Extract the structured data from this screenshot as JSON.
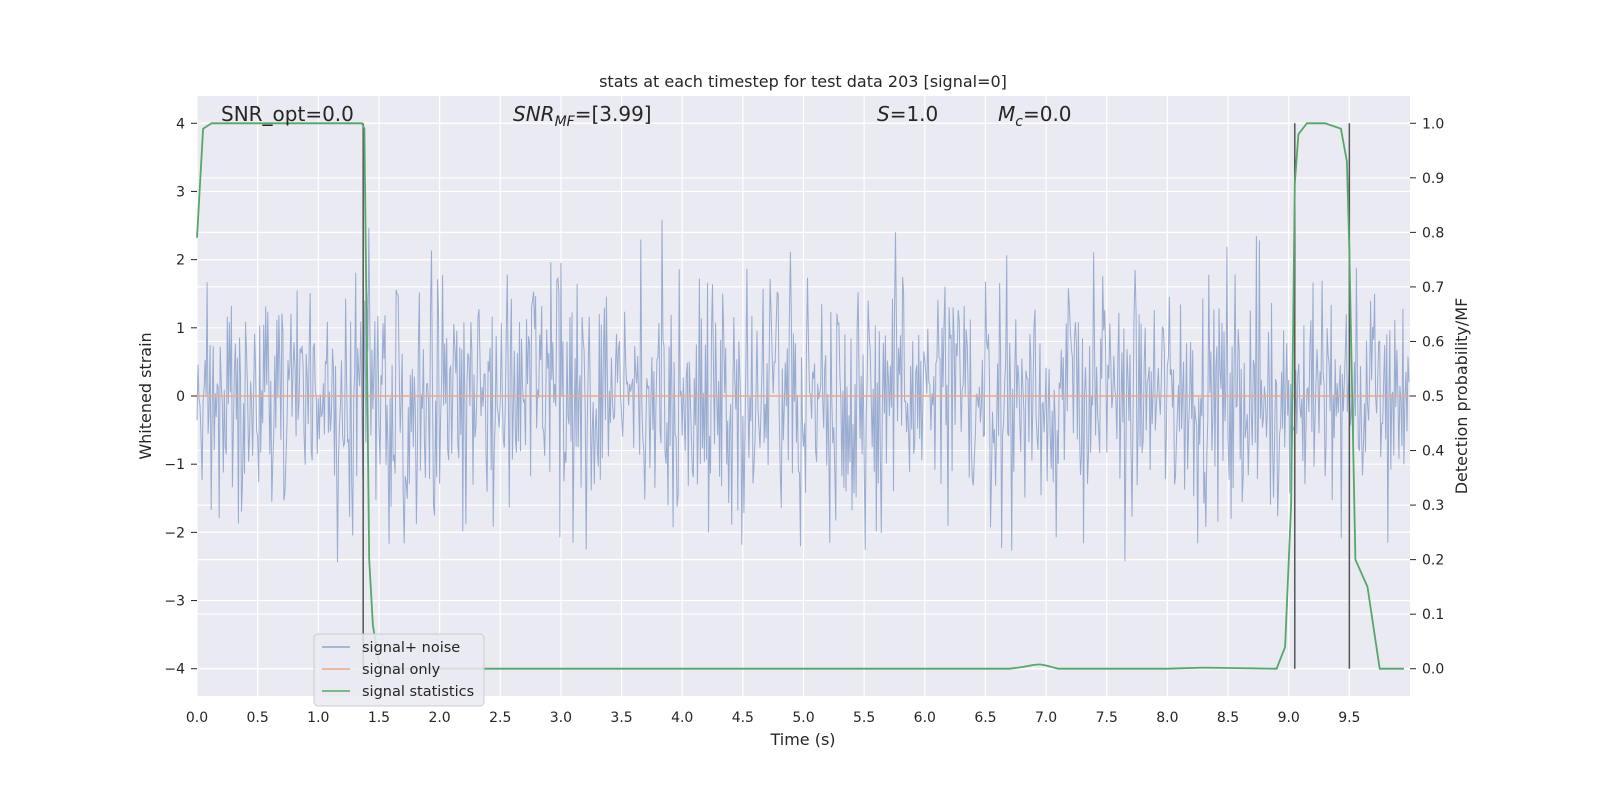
{
  "chart_data": {
    "type": "line",
    "title": "stats at each timestep for test data 203 [signal=0]",
    "xlabel": "Time (s)",
    "ylabel_left": "Whitened strain",
    "ylabel_right": "Detection probability/MF",
    "xlim": [
      0.0,
      10.0
    ],
    "ylim_left": [
      -4.4,
      4.4
    ],
    "ylim_right": [
      -0.05,
      1.05
    ],
    "x_ticks": [
      "0.0",
      "0.5",
      "1.0",
      "1.5",
      "2.0",
      "2.5",
      "3.0",
      "3.5",
      "4.0",
      "4.5",
      "5.0",
      "5.5",
      "6.0",
      "6.5",
      "7.0",
      "7.5",
      "8.0",
      "8.5",
      "9.0",
      "9.5"
    ],
    "y_ticks_left": [
      "−4",
      "−3",
      "−2",
      "−1",
      "0",
      "1",
      "2",
      "3",
      "4"
    ],
    "y_ticks_right": [
      "0.0",
      "0.1",
      "0.2",
      "0.3",
      "0.4",
      "0.5",
      "0.6",
      "0.7",
      "0.8",
      "0.9",
      "1.0"
    ],
    "grid": true,
    "legend_position": "lower-left",
    "annotations": {
      "snr_opt": "SNR_opt=0.0",
      "snr_mf_main": "SNR",
      "snr_mf_sub": "MF",
      "snr_mf_value": "=[3.99]",
      "s_main": "S",
      "s_value": "=1.0",
      "mc_main": "M",
      "mc_sub": "c",
      "mc_value": "=0.0"
    },
    "vertical_lines_x": [
      1.37,
      9.05,
      9.5
    ],
    "series": [
      {
        "name": "signal+ noise",
        "axis": "left",
        "color": "#8fa4cc",
        "description_values": "white-noise strain, approximately zero mean, peaks near ±4"
      },
      {
        "name": "signal only",
        "axis": "left",
        "color": "#e8a88c",
        "x": [
          0.0,
          10.0
        ],
        "y": [
          0.0,
          0.0
        ]
      },
      {
        "name": "signal statistics",
        "axis": "right",
        "color": "#55a868",
        "x": [
          0.0,
          0.05,
          0.12,
          0.3,
          1.3,
          1.36,
          1.38,
          1.42,
          1.45,
          1.5,
          1.6,
          2.0,
          4.0,
          6.7,
          6.8,
          6.9,
          6.95,
          7.0,
          7.1,
          8.0,
          8.3,
          8.9,
          8.97,
          9.02,
          9.05,
          9.08,
          9.15,
          9.3,
          9.43,
          9.48,
          9.5,
          9.55,
          9.65,
          9.75,
          9.95
        ],
        "y": [
          0.79,
          0.99,
          1.0,
          1.0,
          1.0,
          1.0,
          0.99,
          0.2,
          0.08,
          0.01,
          0.0,
          0.0,
          0.0,
          0.0,
          0.003,
          0.007,
          0.008,
          0.006,
          0.0,
          0.0,
          0.002,
          0.0,
          0.04,
          0.3,
          0.89,
          0.98,
          1.0,
          1.0,
          0.99,
          0.93,
          0.77,
          0.2,
          0.15,
          0.0,
          0.0
        ]
      }
    ]
  }
}
